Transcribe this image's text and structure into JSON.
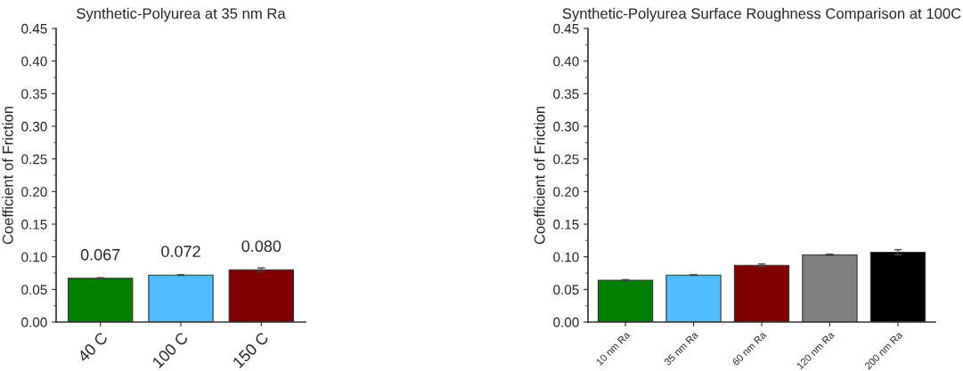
{
  "chart_data": [
    {
      "type": "bar",
      "title": "Synthetic-Polyurea at 35 nm Ra",
      "ylabel": "Coefficient of Friction",
      "categories": [
        "40 C",
        "100 C",
        "150 C"
      ],
      "values": [
        0.067,
        0.072,
        0.08
      ],
      "colors": [
        "#007f00",
        "#4fbcff",
        "#800000"
      ],
      "errors": [
        0.001,
        0.0005,
        0.003
      ],
      "value_labels": [
        "0.067",
        "0.072",
        "0.080"
      ],
      "ylim": [
        0,
        0.45
      ],
      "yticks": [
        {
          "value": 0,
          "label": "0.00"
        },
        {
          "value": 0.05,
          "label": "0.05"
        },
        {
          "value": 0.1,
          "label": "0.10"
        },
        {
          "value": 0.15,
          "label": "0.15"
        },
        {
          "value": 0.2,
          "label": "0.20"
        },
        {
          "value": 0.25,
          "label": "0.25"
        },
        {
          "value": 0.3,
          "label": "0.30"
        },
        {
          "value": 0.35,
          "label": "0.35"
        },
        {
          "value": 0.4,
          "label": "0.40"
        },
        {
          "value": 0.45,
          "label": "0.45"
        }
      ],
      "grid": false,
      "legend": false
    },
    {
      "type": "bar",
      "title": "Synthetic-Polyurea Surface Roughness Comparison at 100C",
      "ylabel": "Coefficient of Friction",
      "categories": [
        "10 nm Ra",
        "35 nm Ra",
        "60 nm Ra",
        "120 nm Ra",
        "200 nm Ra"
      ],
      "values": [
        0.064,
        0.072,
        0.087,
        0.103,
        0.107
      ],
      "colors": [
        "#007f00",
        "#4fbcff",
        "#800000",
        "#808080",
        "#000000"
      ],
      "errors": [
        0.001,
        0.0005,
        0.002,
        0.001,
        0.004
      ],
      "ylim": [
        0,
        0.45
      ],
      "yticks": [
        {
          "value": 0,
          "label": "0.00"
        },
        {
          "value": 0.05,
          "label": "0.05"
        },
        {
          "value": 0.1,
          "label": "0.10"
        },
        {
          "value": 0.15,
          "label": "0.15"
        },
        {
          "value": 0.2,
          "label": "0.20"
        },
        {
          "value": 0.25,
          "label": "0.25"
        },
        {
          "value": 0.3,
          "label": "0.30"
        },
        {
          "value": 0.35,
          "label": "0.35"
        },
        {
          "value": 0.4,
          "label": "0.40"
        },
        {
          "value": 0.45,
          "label": "0.45"
        }
      ],
      "grid": false,
      "legend": false
    }
  ]
}
